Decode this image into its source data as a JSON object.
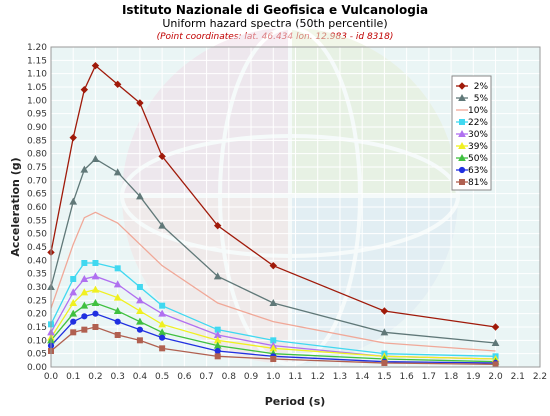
{
  "chart_data": {
    "type": "line",
    "title": "Istituto Nazionale di Geofisica e Vulcanologia",
    "subtitle": "Uniform hazard spectra (50th percentile)",
    "coordinates_note": "(Point coordinates: lat. 46.434 lon. 12.983 - id 8318)",
    "xlabel": "Period (s)",
    "ylabel": "Acceleration (g)",
    "xlim": [
      0,
      2.2
    ],
    "ylim": [
      0,
      1.2
    ],
    "x_ticks": [
      "0.0",
      "0.1",
      "0.2",
      "0.3",
      "0.4",
      "0.5",
      "0.6",
      "0.7",
      "0.8",
      "0.9",
      "1.0",
      "1.1",
      "1.2",
      "1.3",
      "1.4",
      "1.5",
      "1.6",
      "1.7",
      "1.8",
      "1.9",
      "2.0",
      "2.1",
      "2.2"
    ],
    "y_ticks": [
      "0.00",
      "0.05",
      "0.10",
      "0.15",
      "0.20",
      "0.25",
      "0.30",
      "0.35",
      "0.40",
      "0.45",
      "0.50",
      "0.55",
      "0.60",
      "0.65",
      "0.70",
      "0.75",
      "0.80",
      "0.85",
      "0.90",
      "0.95",
      "1.00",
      "1.05",
      "1.10",
      "1.15",
      "1.20"
    ],
    "grid": true,
    "legend_position": "right",
    "x": [
      0.0,
      0.1,
      0.15,
      0.2,
      0.3,
      0.4,
      0.5,
      0.75,
      1.0,
      1.5,
      2.0
    ],
    "series": [
      {
        "name": "2%",
        "color": "#a01a0a",
        "marker": "diamond",
        "values": [
          0.43,
          0.86,
          1.04,
          1.13,
          1.06,
          0.99,
          0.79,
          0.53,
          0.38,
          0.21,
          0.15
        ]
      },
      {
        "name": "5%",
        "color": "#607878",
        "marker": "triangle",
        "values": [
          0.3,
          0.62,
          0.74,
          0.78,
          0.73,
          0.64,
          0.53,
          0.34,
          0.24,
          0.13,
          0.09
        ]
      },
      {
        "name": "10%",
        "color": "#f0a898",
        "marker": "none",
        "values": [
          0.22,
          0.46,
          0.56,
          0.58,
          0.54,
          0.46,
          0.38,
          0.24,
          0.17,
          0.09,
          0.06
        ]
      },
      {
        "name": "22%",
        "color": "#40d8f0",
        "marker": "square",
        "values": [
          0.16,
          0.33,
          0.39,
          0.39,
          0.37,
          0.3,
          0.23,
          0.14,
          0.1,
          0.05,
          0.04
        ]
      },
      {
        "name": "30%",
        "color": "#b070f0",
        "marker": "triangle",
        "values": [
          0.13,
          0.28,
          0.33,
          0.34,
          0.31,
          0.25,
          0.2,
          0.12,
          0.08,
          0.04,
          0.03
        ]
      },
      {
        "name": "39%",
        "color": "#f0f020",
        "marker": "triangle",
        "values": [
          0.11,
          0.24,
          0.28,
          0.29,
          0.26,
          0.21,
          0.16,
          0.1,
          0.07,
          0.04,
          0.03
        ]
      },
      {
        "name": "50%",
        "color": "#40c040",
        "marker": "triangle",
        "values": [
          0.1,
          0.2,
          0.23,
          0.24,
          0.21,
          0.17,
          0.13,
          0.08,
          0.05,
          0.03,
          0.02
        ]
      },
      {
        "name": "63%",
        "color": "#2030e0",
        "marker": "circle",
        "values": [
          0.08,
          0.17,
          0.19,
          0.2,
          0.17,
          0.14,
          0.11,
          0.06,
          0.04,
          0.02,
          0.015
        ]
      },
      {
        "name": "81%",
        "color": "#b06050",
        "marker": "square",
        "values": [
          0.06,
          0.13,
          0.14,
          0.15,
          0.12,
          0.1,
          0.07,
          0.04,
          0.03,
          0.015,
          0.01
        ]
      }
    ]
  }
}
